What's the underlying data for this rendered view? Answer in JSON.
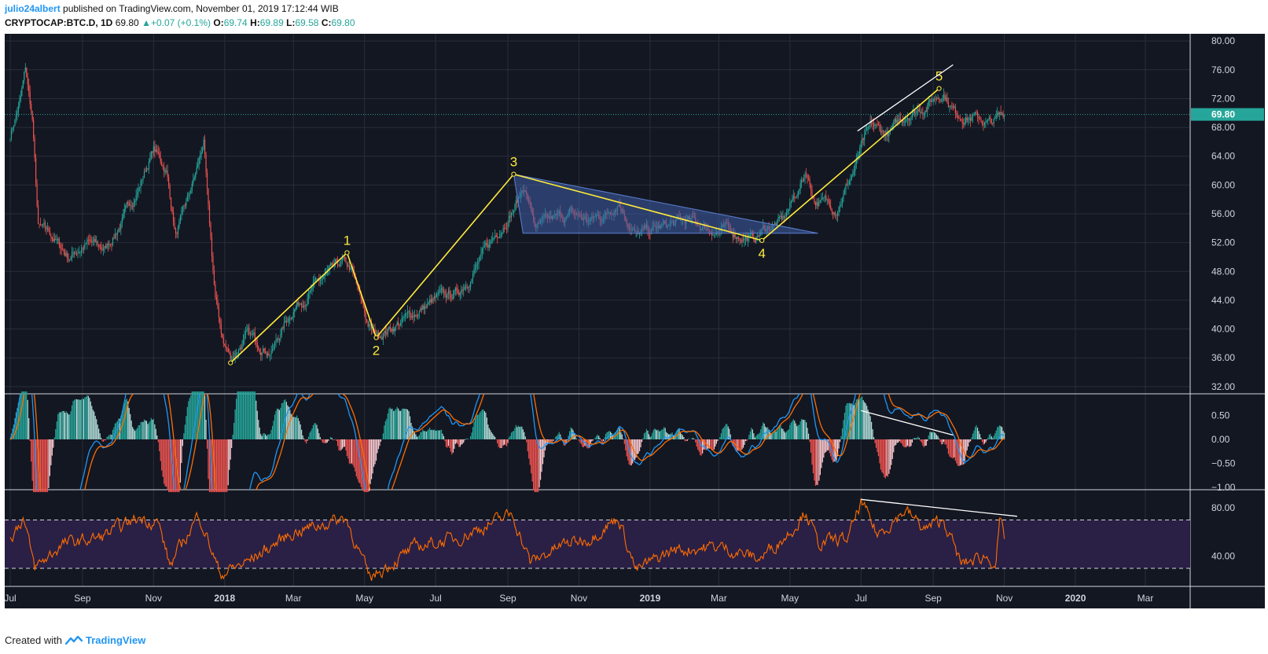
{
  "header": {
    "author": "julio24albert",
    "published": "published on TradingView.com, November 01, 2019 17:12:44 WIB",
    "symbol": "CRYPTOCAP:BTC.D, 1D",
    "last": "69.80",
    "change": "+0.07 (+0.1%)",
    "o_label": "O:",
    "o_value": "69.74",
    "h_label": "H:",
    "h_value": "69.89",
    "l_label": "L:",
    "l_value": "69.58",
    "c_label": "C:",
    "c_value": "69.80"
  },
  "footer": {
    "created_with": "Created with",
    "brand": "TradingView"
  },
  "colors": {
    "background": "#131722",
    "grid": "#2a2e39",
    "up": "#26a69a",
    "down": "#ef5350",
    "wave": "#ffeb3b",
    "triangle_fill": "#3f5ea8",
    "macd_line": "#2196f3",
    "signal_line": "#ff6d00",
    "rsi_line": "#ff6d00",
    "rsi_band": "#2a1f45",
    "price_badge": "#26a69a"
  },
  "chart_data": {
    "type": "candlestick",
    "timeframe": "1D",
    "x_labels": [
      "Jul",
      "Sep",
      "Nov",
      "2018",
      "Mar",
      "May",
      "Jul",
      "Sep",
      "Nov",
      "2019",
      "Mar",
      "May",
      "Jul",
      "Sep",
      "Nov",
      "2020",
      "Mar"
    ],
    "x_label_months": [
      "2017-07",
      "2017-09",
      "2017-11",
      "2018-01",
      "2018-03",
      "2018-05",
      "2018-07",
      "2018-09",
      "2018-11",
      "2019-01",
      "2019-03",
      "2019-05",
      "2019-07",
      "2019-09",
      "2019-11",
      "2020-01",
      "2020-03"
    ],
    "price_axis": {
      "ticks": [
        "80.00",
        "76.00",
        "72.00",
        "68.00",
        "64.00",
        "60.00",
        "56.00",
        "52.00",
        "48.00",
        "44.00",
        "40.00",
        "36.00",
        "32.00"
      ],
      "ylim": [
        31,
        81
      ],
      "last_price": "69.80"
    },
    "price_anchors": [
      [
        "2017-07-01",
        67
      ],
      [
        "2017-07-10",
        72
      ],
      [
        "2017-07-14",
        76
      ],
      [
        "2017-07-20",
        69
      ],
      [
        "2017-07-25",
        54
      ],
      [
        "2017-08-05",
        53
      ],
      [
        "2017-08-20",
        50
      ],
      [
        "2017-09-05",
        52
      ],
      [
        "2017-09-20",
        51
      ],
      [
        "2017-10-05",
        55
      ],
      [
        "2017-10-20",
        60
      ],
      [
        "2017-11-01",
        65
      ],
      [
        "2017-11-12",
        62
      ],
      [
        "2017-11-20",
        53
      ],
      [
        "2017-12-01",
        58
      ],
      [
        "2017-12-08",
        62
      ],
      [
        "2017-12-14",
        66
      ],
      [
        "2017-12-18",
        56
      ],
      [
        "2017-12-24",
        44
      ],
      [
        "2017-12-31",
        38
      ],
      [
        "2018-01-06",
        36
      ],
      [
        "2018-01-20",
        39
      ],
      [
        "2018-02-10",
        37
      ],
      [
        "2018-03-01",
        43
      ],
      [
        "2018-03-20",
        46
      ],
      [
        "2018-04-12",
        49
      ],
      [
        "2018-04-20",
        48
      ],
      [
        "2018-05-03",
        41
      ],
      [
        "2018-05-10",
        39
      ],
      [
        "2018-06-01",
        41
      ],
      [
        "2018-07-01",
        44
      ],
      [
        "2018-07-20",
        45
      ],
      [
        "2018-08-10",
        50
      ],
      [
        "2018-08-25",
        54
      ],
      [
        "2018-09-10",
        58
      ],
      [
        "2018-09-15",
        60
      ],
      [
        "2018-09-25",
        54
      ],
      [
        "2018-10-10",
        55
      ],
      [
        "2018-10-25",
        56
      ],
      [
        "2018-11-10",
        55
      ],
      [
        "2018-11-25",
        56
      ],
      [
        "2018-12-05",
        58
      ],
      [
        "2018-12-20",
        53
      ],
      [
        "2019-01-10",
        54
      ],
      [
        "2019-02-01",
        55
      ],
      [
        "2019-02-20",
        54
      ],
      [
        "2019-03-10",
        53.5
      ],
      [
        "2019-03-31",
        52.5
      ],
      [
        "2019-04-10",
        54
      ],
      [
        "2019-04-25",
        55
      ],
      [
        "2019-05-10",
        60
      ],
      [
        "2019-05-15",
        62
      ],
      [
        "2019-05-22",
        58
      ],
      [
        "2019-06-10",
        57
      ],
      [
        "2019-06-25",
        62
      ],
      [
        "2019-07-01",
        65
      ],
      [
        "2019-07-10",
        68
      ],
      [
        "2019-07-25",
        67
      ],
      [
        "2019-08-10",
        70
      ],
      [
        "2019-08-25",
        71
      ],
      [
        "2019-09-05",
        72.5
      ],
      [
        "2019-09-10",
        73
      ],
      [
        "2019-09-20",
        70
      ],
      [
        "2019-10-05",
        69.5
      ],
      [
        "2019-10-20",
        68.5
      ],
      [
        "2019-11-01",
        69.8
      ]
    ],
    "elliott_wave": [
      {
        "label": "",
        "date": "2018-01-06",
        "price": 35.3
      },
      {
        "label": "1",
        "date": "2018-04-16",
        "price": 50.6
      },
      {
        "label": "2",
        "date": "2018-05-11",
        "price": 38.8
      },
      {
        "label": "3",
        "date": "2018-09-06",
        "price": 61.5
      },
      {
        "label": "4",
        "date": "2019-04-07",
        "price": 52.3
      },
      {
        "label": "5",
        "date": "2019-09-06",
        "price": 73.4
      }
    ],
    "triangle": [
      [
        "2018-09-06",
        61.5
      ],
      [
        "2019-05-25",
        53.3
      ],
      [
        "2018-09-14",
        53.3
      ]
    ],
    "upper_trendline": [
      [
        "2019-06-28",
        67.5
      ],
      [
        "2019-09-18",
        76.7
      ]
    ],
    "macd": {
      "ticks": [
        "0.50",
        "0.00",
        "−0.50",
        "−1.00"
      ],
      "ylim": [
        -1.05,
        0.95
      ],
      "divergence_line": [
        [
          "2019-07-01",
          0.6
        ],
        [
          "2019-09-18",
          0.09
        ]
      ]
    },
    "rsi": {
      "ticks": [
        "80.00",
        "40.00"
      ],
      "ylim": [
        15,
        95
      ],
      "band": [
        70,
        30
      ],
      "anchors": [
        [
          "2017-07-01",
          55
        ],
        [
          "2017-07-12",
          72
        ],
        [
          "2017-07-22",
          30
        ],
        [
          "2017-08-15",
          50
        ],
        [
          "2017-09-15",
          55
        ],
        [
          "2017-10-20",
          72
        ],
        [
          "2017-11-05",
          68
        ],
        [
          "2017-11-15",
          32
        ],
        [
          "2017-12-10",
          75
        ],
        [
          "2017-12-28",
          25
        ],
        [
          "2018-01-20",
          35
        ],
        [
          "2018-03-01",
          60
        ],
        [
          "2018-04-15",
          72
        ],
        [
          "2018-05-05",
          22
        ],
        [
          "2018-06-15",
          48
        ],
        [
          "2018-07-20",
          55
        ],
        [
          "2018-09-05",
          75
        ],
        [
          "2018-09-20",
          35
        ],
        [
          "2018-10-20",
          50
        ],
        [
          "2018-11-10",
          55
        ],
        [
          "2018-12-05",
          72
        ],
        [
          "2018-12-20",
          28
        ],
        [
          "2019-01-20",
          45
        ],
        [
          "2019-03-01",
          48
        ],
        [
          "2019-04-05",
          38
        ],
        [
          "2019-05-01",
          60
        ],
        [
          "2019-05-15",
          78
        ],
        [
          "2019-05-25",
          50
        ],
        [
          "2019-06-20",
          55
        ],
        [
          "2019-07-01",
          84
        ],
        [
          "2019-07-15",
          58
        ],
        [
          "2019-08-08",
          78
        ],
        [
          "2019-08-25",
          62
        ],
        [
          "2019-09-10",
          70
        ],
        [
          "2019-09-25",
          33
        ],
        [
          "2019-10-15",
          40
        ],
        [
          "2019-10-25",
          35
        ],
        [
          "2019-10-28",
          68
        ],
        [
          "2019-11-01",
          55
        ]
      ],
      "divergence_line": [
        [
          "2019-07-01",
          87
        ],
        [
          "2019-11-12",
          73
        ]
      ]
    }
  }
}
